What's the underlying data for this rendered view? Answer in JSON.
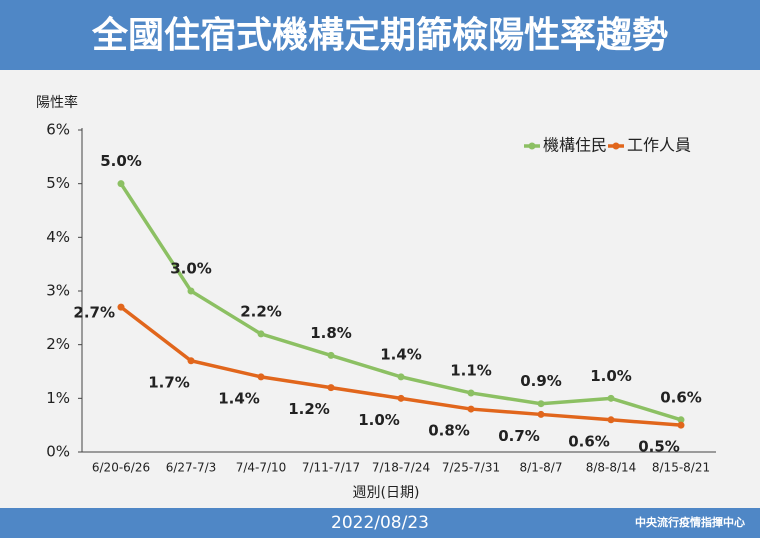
{
  "chart_data": {
    "type": "line",
    "title": "全國住宿式機構定期篩檢陽性率趨勢",
    "y_label": "陽性率",
    "x_label": "週別(日期)",
    "date": "2022/08/23",
    "source": "中央流行疫情指揮中心",
    "categories": [
      "6/20-6/26",
      "6/27-7/3",
      "7/4-7/10",
      "7/11-7/17",
      "7/18-7/24",
      "7/25-7/31",
      "8/1-8/7",
      "8/8-8/14",
      "8/15-8/21"
    ],
    "series": [
      {
        "name": "機構住民",
        "color": "#8cc063",
        "values": [
          5.0,
          3.0,
          2.2,
          1.8,
          1.4,
          1.1,
          0.9,
          1.0,
          0.6
        ],
        "value_labels": [
          "5.0%",
          "3.0%",
          "2.2%",
          "1.8%",
          "1.4%",
          "1.1%",
          "0.9%",
          "1.0%",
          "0.6%"
        ]
      },
      {
        "name": "工作人員",
        "color": "#e1661c",
        "values": [
          2.7,
          1.7,
          1.4,
          1.2,
          1.0,
          0.8,
          0.7,
          0.6,
          0.5
        ],
        "value_labels": [
          "2.7%",
          "1.7%",
          "1.4%",
          "1.2%",
          "1.0%",
          "0.8%",
          "0.7%",
          "0.6%",
          "0.5%"
        ]
      }
    ],
    "ylim": [
      0,
      6
    ],
    "yticks": [
      {
        "value": 0,
        "label": "0%"
      },
      {
        "value": 1,
        "label": "1%"
      },
      {
        "value": 2,
        "label": "2%"
      },
      {
        "value": 3,
        "label": "3%"
      },
      {
        "value": 4,
        "label": "4%"
      },
      {
        "value": 5,
        "label": "5%"
      },
      {
        "value": 6,
        "label": "6%"
      }
    ],
    "legend": "top-right"
  }
}
